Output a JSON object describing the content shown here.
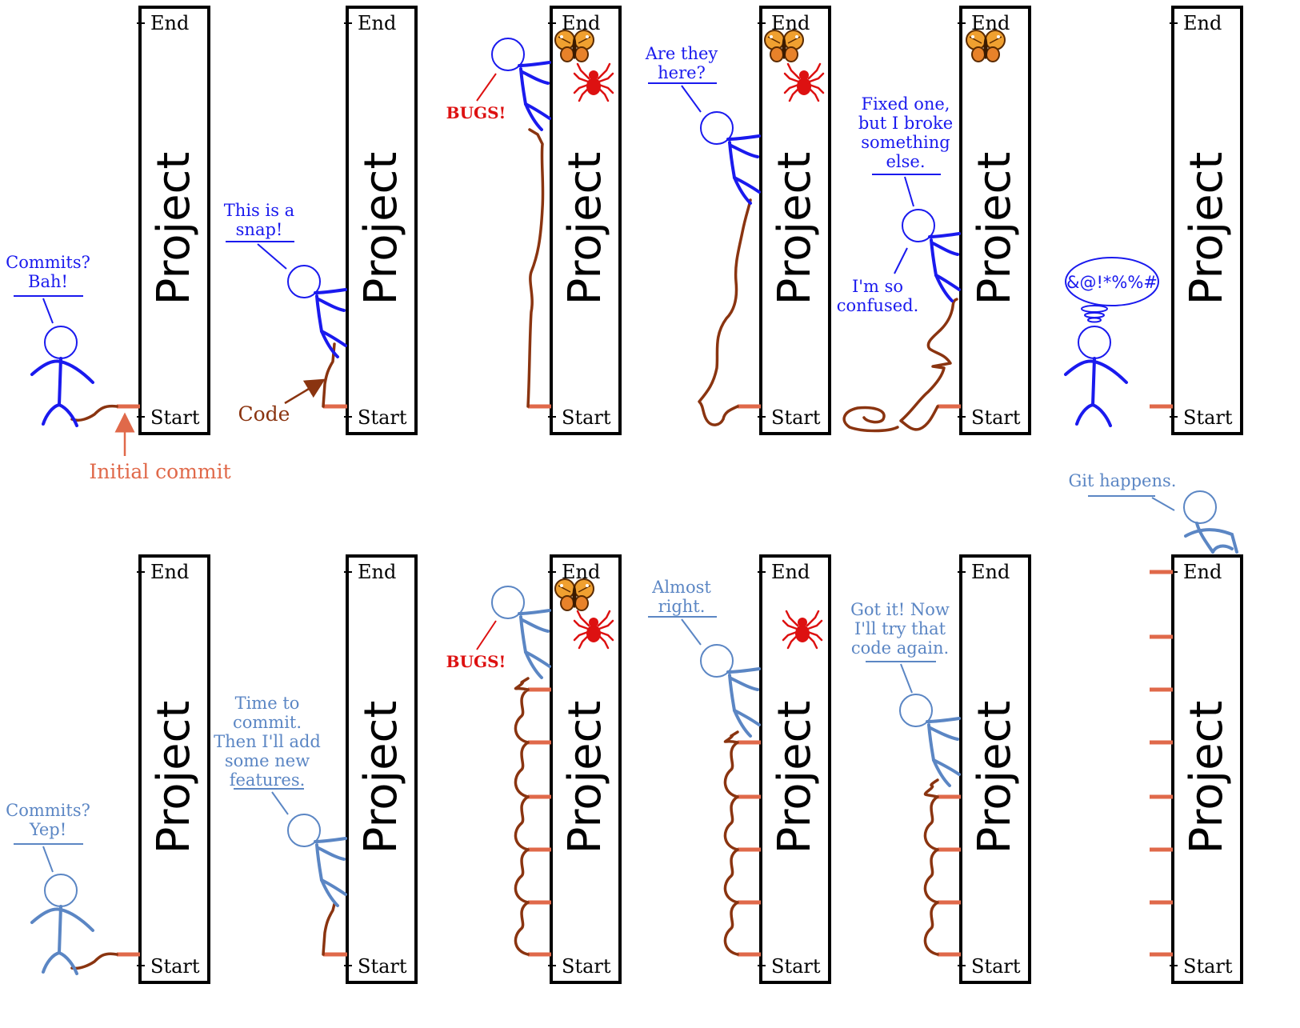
{
  "pillar": {
    "title": "Project",
    "end_label": "End",
    "start_label": "Start"
  },
  "annotations": {
    "initial_commit": "Initial commit",
    "code": "Code"
  },
  "top_row": {
    "panel1": [
      "Commits?",
      "Bah!"
    ],
    "panel2": [
      "This is a",
      "snap!"
    ],
    "panel3": [
      "BUGS!"
    ],
    "panel4": [
      "Are they",
      "here?"
    ],
    "panel5_speech": [
      "Fixed one,",
      "but I broke",
      "something",
      "else."
    ],
    "panel5_thought": [
      "I'm so",
      "confused."
    ],
    "panel6": [
      "&@!*%%#"
    ]
  },
  "bottom_row": {
    "panel1": [
      "Commits?",
      "Yep!"
    ],
    "panel2": [
      "Time to",
      "commit.",
      "Then I'll add",
      "some new",
      "features."
    ],
    "panel3": [
      "BUGS!"
    ],
    "panel4": [
      "Almost",
      "right."
    ],
    "panel5": [
      "Got it! Now",
      "I'll try that",
      "code again."
    ],
    "panel6": [
      "Git happens."
    ]
  },
  "colors": {
    "top_figure": "#1a1aee",
    "bottom_figure": "#5b86c4",
    "code_line": "#8a3410",
    "commit": "#e0694a",
    "bug": "#dd1111"
  }
}
